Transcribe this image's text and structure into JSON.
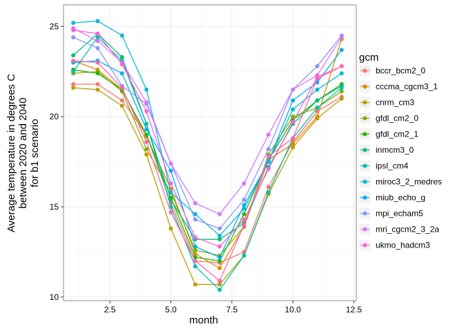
{
  "chart_data": {
    "type": "line",
    "xlabel": "month",
    "ylabel_lines": [
      "Average temperature in degrees C",
      "between 2020 and 2040",
      "for b1 scenario"
    ],
    "xlim": [
      0.6,
      12.6
    ],
    "ylim": [
      9.8,
      26.2
    ],
    "x_ticks": [
      2.5,
      5.0,
      7.5,
      10.0,
      12.5
    ],
    "x_tick_labels": [
      "2.5",
      "5.0",
      "7.5",
      "10.0",
      "12.5"
    ],
    "y_ticks": [
      10,
      15,
      20,
      25
    ],
    "y_tick_labels": [
      "10",
      "15",
      "20",
      "25"
    ],
    "grid": true,
    "legend_title": "gcm",
    "legend_position": "right",
    "x": [
      1,
      2,
      3,
      4,
      5,
      6,
      7,
      8,
      9,
      10,
      11,
      12
    ],
    "series": [
      {
        "name": "bccr_bcm2_0",
        "color": "#F8766D",
        "values": [
          21.8,
          21.8,
          20.9,
          19.0,
          15.2,
          12.0,
          11.9,
          12.5,
          16.1,
          18.6,
          20.3,
          21.1
        ]
      },
      {
        "name": "cccma_cgcm3_1",
        "color": "#E18A00",
        "values": [
          23.1,
          22.6,
          21.5,
          18.9,
          16.0,
          12.4,
          11.6,
          13.9,
          17.6,
          18.5,
          20.0,
          24.3
        ]
      },
      {
        "name": "cnrm_cm3",
        "color": "#BE9C00",
        "values": [
          21.6,
          21.5,
          20.6,
          17.9,
          13.8,
          10.7,
          10.7,
          12.3,
          15.7,
          18.3,
          19.9,
          21.0
        ]
      },
      {
        "name": "gfdl_cm2_0",
        "color": "#8CAB00",
        "values": [
          22.4,
          22.5,
          21.4,
          18.2,
          15.8,
          12.6,
          12.3,
          13.9,
          17.9,
          20.0,
          20.5,
          21.4
        ]
      },
      {
        "name": "gfdl_cm2_1",
        "color": "#24B700",
        "values": [
          22.6,
          22.4,
          21.5,
          19.0,
          15.5,
          12.2,
          12.0,
          14.6,
          17.6,
          19.8,
          20.9,
          21.8
        ]
      },
      {
        "name": "inmcm3_0",
        "color": "#00BE70",
        "values": [
          23.4,
          24.6,
          23.3,
          19.6,
          15.4,
          13.2,
          13.2,
          14.1,
          17.2,
          19.6,
          20.9,
          21.7
        ]
      },
      {
        "name": "ipsl_cm4",
        "color": "#00C1AB",
        "values": [
          22.5,
          24.4,
          23.1,
          19.6,
          15.0,
          11.7,
          10.4,
          12.3,
          15.8,
          18.8,
          20.5,
          21.6
        ]
      },
      {
        "name": "miroc3_2_medres",
        "color": "#00BBDA",
        "values": [
          25.2,
          25.3,
          24.5,
          21.5,
          15.8,
          14.6,
          13.4,
          14.9,
          17.5,
          20.4,
          21.5,
          22.4
        ]
      },
      {
        "name": "miub_echo_g",
        "color": "#00ACFC",
        "values": [
          23.0,
          23.1,
          22.4,
          19.3,
          17.0,
          12.8,
          12.2,
          15.1,
          17.5,
          20.9,
          21.9,
          23.7
        ]
      },
      {
        "name": "mpi_echam5",
        "color": "#8B93FF",
        "values": [
          24.4,
          23.8,
          21.7,
          20.7,
          17.4,
          14.3,
          13.8,
          15.4,
          18.2,
          21.5,
          22.8,
          24.5
        ]
      },
      {
        "name": "mri_cgcm2_3_2a",
        "color": "#D575FE",
        "values": [
          24.9,
          24.2,
          23.0,
          20.8,
          17.4,
          15.2,
          14.6,
          16.3,
          19.0,
          21.5,
          22.3,
          24.4
        ]
      },
      {
        "name": "ukmo_hadcm3",
        "color": "#F962DD",
        "values": [
          24.8,
          24.6,
          22.9,
          20.3,
          16.3,
          13.3,
          12.8,
          14.3,
          17.1,
          19.7,
          22.2,
          22.8
        ]
      },
      {
        "name": "",
        "color": "#FF65AC",
        "values": [
          23.1,
          23.0,
          21.6,
          18.6,
          14.7,
          12.0,
          10.9,
          14.0,
          17.8,
          18.8,
          22.1,
          22.8
        ]
      }
    ]
  }
}
